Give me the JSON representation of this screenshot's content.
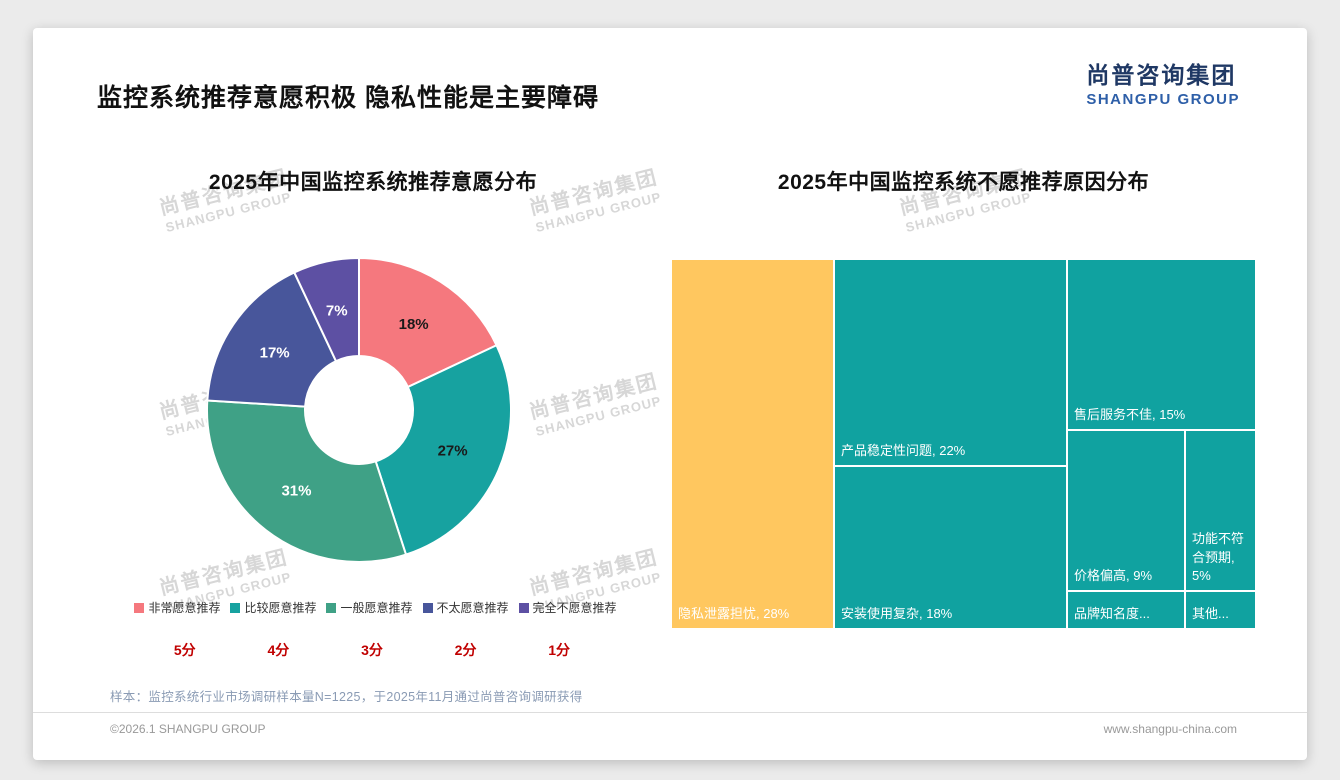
{
  "page": {
    "title": "监控系统推荐意愿积极 隐私性能是主要障碍",
    "logo_cn": "尚普咨询集团",
    "logo_en": "SHANGPU GROUP",
    "watermark_cn": "尚普咨询集团",
    "watermark_en": "SHANGPU GROUP",
    "footnote": "样本：监控系统行业市场调研样本量N=1225，于2025年11月通过尚普咨询调研获得",
    "footer_left": "©2026.1 SHANGPU GROUP",
    "footer_right": "www.shangpu-china.com"
  },
  "chart_data": [
    {
      "type": "pie",
      "subtype": "donut",
      "title": "2025年中国监控系统推荐意愿分布",
      "labels": [
        "非常愿意推荐",
        "比较愿意推荐",
        "一般愿意推荐",
        "不太愿意推荐",
        "完全不愿意推荐"
      ],
      "values": [
        18,
        27,
        31,
        17,
        7
      ],
      "value_labels": [
        "18%",
        "27%",
        "31%",
        "17%",
        "7%"
      ],
      "colors": [
        "#F5787E",
        "#17A2A0",
        "#3FA186",
        "#48569B",
        "#5D50A3"
      ],
      "label_text_colors": [
        "#1a1a1a",
        "#1a1a1a",
        "#ffffff",
        "#ffffff",
        "#ffffff"
      ],
      "scores": [
        "5分",
        "4分",
        "3分",
        "2分",
        "1分"
      ],
      "score_color": "#C00000",
      "legend_position": "bottom",
      "start_angle_deg": 0,
      "direction": "clockwise"
    },
    {
      "type": "treemap",
      "title": "2025年中国监控系统不愿推荐原因分布",
      "items": [
        {
          "name": "隐私泄露担忧",
          "pct": 28,
          "label": "隐私泄露担忧, 28%",
          "color": "#FFC75F"
        },
        {
          "name": "产品稳定性问题",
          "pct": 22,
          "label": "产品稳定性问题, 22%",
          "color": "#10A2A0"
        },
        {
          "name": "安装使用复杂",
          "pct": 18,
          "label": "安装使用复杂, 18%",
          "color": "#10A2A0"
        },
        {
          "name": "售后服务不佳",
          "pct": 15,
          "label": "售后服务不佳, 15%",
          "color": "#10A2A0"
        },
        {
          "name": "价格偏高",
          "pct": 9,
          "label": "价格偏高, 9%",
          "color": "#10A2A0"
        },
        {
          "name": "功能不符合预期",
          "pct": 5,
          "label": "功能不符合预期, 5%",
          "color": "#10A2A0"
        },
        {
          "name": "品牌知名度",
          "label": "品牌知名度...",
          "color": "#10A2A0"
        },
        {
          "name": "其他",
          "label": "其他...",
          "color": "#10A2A0"
        }
      ]
    }
  ]
}
